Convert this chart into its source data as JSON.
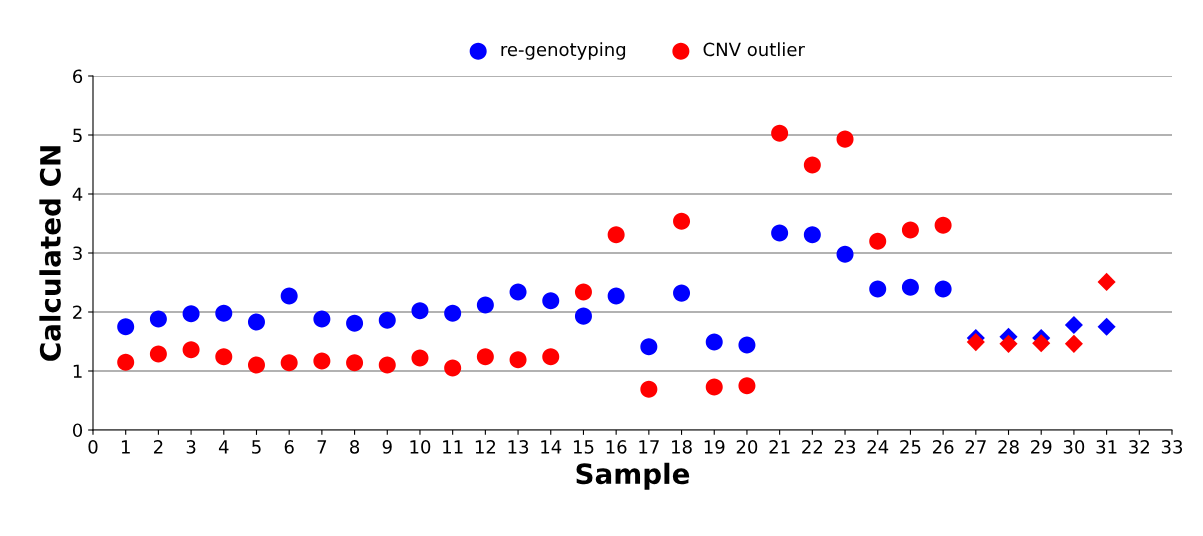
{
  "chart_data": {
    "type": "scatter",
    "xlabel": "Sample",
    "ylabel": "Calculated CN",
    "xlim": [
      0,
      33
    ],
    "xticks": [
      0,
      1,
      2,
      3,
      4,
      5,
      6,
      7,
      8,
      9,
      10,
      11,
      12,
      13,
      14,
      15,
      16,
      17,
      18,
      19,
      20,
      21,
      22,
      23,
      24,
      25,
      26,
      27,
      28,
      29,
      30,
      31,
      32,
      33
    ],
    "ylim": [
      0,
      6
    ],
    "yticks": [
      0,
      1,
      2,
      3,
      4,
      5,
      6
    ],
    "grid": "y",
    "legend": "top",
    "marker": "circle",
    "series": [
      {
        "name": "re-genotyping",
        "color": "#0000ff",
        "x": [
          1,
          2,
          3,
          4,
          5,
          6,
          7,
          8,
          9,
          10,
          11,
          12,
          13,
          14,
          15,
          16,
          17,
          18,
          19,
          20,
          21,
          22,
          23,
          24,
          25,
          26
        ],
        "values": [
          1.75,
          1.88,
          1.97,
          1.98,
          1.83,
          2.27,
          1.88,
          1.81,
          1.86,
          2.02,
          1.98,
          2.12,
          2.34,
          2.19,
          1.93,
          2.27,
          1.41,
          2.32,
          1.49,
          1.44,
          3.34,
          3.31,
          2.98,
          2.39,
          2.42,
          2.39
        ]
      },
      {
        "name": "CNV outlier",
        "color": "#ff0000",
        "x": [
          1,
          2,
          3,
          4,
          5,
          6,
          7,
          8,
          9,
          10,
          11,
          12,
          13,
          14,
          15,
          16,
          17,
          18,
          19,
          20,
          21,
          22,
          23,
          24,
          25,
          26
        ],
        "values": [
          1.15,
          1.29,
          1.36,
          1.24,
          1.1,
          1.14,
          1.17,
          1.14,
          1.1,
          1.22,
          1.05,
          1.24,
          1.19,
          1.24,
          2.34,
          3.31,
          0.69,
          3.54,
          0.73,
          0.75,
          5.03,
          4.49,
          4.93,
          3.2,
          3.39,
          3.47
        ]
      },
      {
        "color": "#0000ff",
        "marker": "diamond",
        "x": [
          27,
          28,
          29,
          30,
          31
        ],
        "values": [
          1.56,
          1.58,
          1.56,
          1.78,
          1.75
        ]
      },
      {
        "color": "#ff0000",
        "marker": "diamond",
        "x": [
          27,
          28,
          29,
          30,
          31
        ],
        "values": [
          1.49,
          1.46,
          1.47,
          1.46,
          2.51
        ]
      }
    ]
  }
}
